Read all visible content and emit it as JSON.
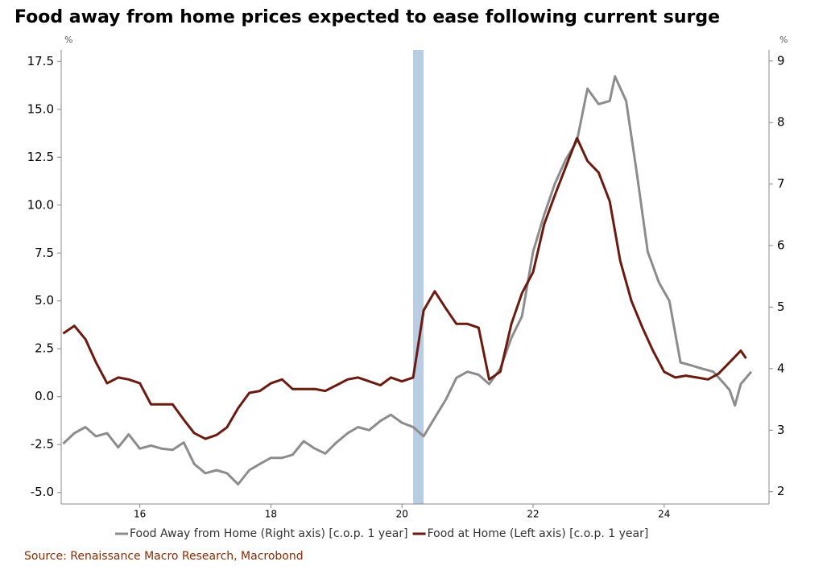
{
  "chart_data": {
    "type": "line",
    "title": "Food away from home prices expected to ease following current surge",
    "y_unit": "%",
    "y2_unit": "%",
    "source": "Source: Renaissance Macro Research, Macrobond",
    "xlim": [
      14.8,
      25.6
    ],
    "xticks": [
      16,
      18,
      20,
      22,
      24
    ],
    "ylim": [
      -5.6,
      18.1
    ],
    "yticks": [
      {
        "value": -5,
        "label": "-5.0"
      },
      {
        "value": -2.5,
        "label": "-2.5"
      },
      {
        "value": 0,
        "label": "0.0"
      },
      {
        "value": 2.5,
        "label": "2.5"
      },
      {
        "value": 5,
        "label": "5.0"
      },
      {
        "value": 7.5,
        "label": "7.5"
      },
      {
        "value": 10,
        "label": "10.0"
      },
      {
        "value": 12.5,
        "label": "12.5"
      },
      {
        "value": 15,
        "label": "15.0"
      },
      {
        "value": 17.5,
        "label": "17.5"
      }
    ],
    "y2lim": [
      1.8,
      9.18
    ],
    "y2ticks": [
      2,
      3,
      4,
      5,
      6,
      7,
      8,
      9
    ],
    "shaded_x": [
      20.17,
      20.33
    ],
    "shaded_color": "#b8cce4",
    "legend": "bottom",
    "series": [
      {
        "name": "Food Away from Home (Right axis) [c.o.p. 1 year]",
        "color": "#8c8c8c",
        "axis": "y2",
        "x": [
          14.83,
          15.0,
          15.17,
          15.33,
          15.5,
          15.67,
          15.83,
          16.0,
          16.17,
          16.33,
          16.5,
          16.67,
          16.83,
          17.0,
          17.17,
          17.33,
          17.5,
          17.67,
          17.83,
          18.0,
          18.17,
          18.33,
          18.5,
          18.67,
          18.83,
          19.0,
          19.17,
          19.33,
          19.5,
          19.67,
          19.83,
          20.0,
          20.17,
          20.33,
          20.5,
          20.67,
          20.83,
          21.0,
          21.17,
          21.33,
          21.5,
          21.67,
          21.83,
          22.0,
          22.17,
          22.33,
          22.5,
          22.67,
          22.83,
          23.0,
          23.17,
          23.25,
          23.42,
          23.58,
          23.75,
          23.92,
          24.08,
          24.25,
          24.42,
          24.58,
          24.75,
          24.92,
          25.0,
          25.08,
          25.17,
          25.33
        ],
        "values": [
          2.78,
          2.95,
          3.05,
          2.9,
          2.95,
          2.72,
          2.93,
          2.7,
          2.75,
          2.7,
          2.68,
          2.8,
          2.45,
          2.3,
          2.35,
          2.3,
          2.12,
          2.35,
          2.45,
          2.55,
          2.55,
          2.6,
          2.82,
          2.7,
          2.62,
          2.8,
          2.95,
          3.05,
          3.0,
          3.15,
          3.25,
          3.12,
          3.05,
          2.9,
          3.2,
          3.5,
          3.85,
          3.95,
          3.9,
          3.75,
          4.0,
          4.5,
          4.85,
          5.9,
          6.5,
          7.0,
          7.4,
          7.7,
          8.55,
          8.3,
          8.35,
          8.75,
          8.35,
          7.2,
          5.9,
          5.4,
          5.1,
          4.1,
          4.05,
          4.0,
          3.95,
          3.75,
          3.65,
          3.4,
          3.75,
          3.95
        ]
      },
      {
        "name": "Food at Home (Left axis) [c.o.p. 1 year]",
        "color": "#6b1a0f",
        "axis": "y",
        "x": [
          14.83,
          15.0,
          15.17,
          15.33,
          15.5,
          15.67,
          15.83,
          16.0,
          16.17,
          16.33,
          16.5,
          16.67,
          16.83,
          17.0,
          17.17,
          17.33,
          17.5,
          17.67,
          17.83,
          18.0,
          18.17,
          18.33,
          18.5,
          18.67,
          18.83,
          19.0,
          19.17,
          19.33,
          19.5,
          19.67,
          19.83,
          20.0,
          20.17,
          20.33,
          20.5,
          20.67,
          20.83,
          21.0,
          21.17,
          21.33,
          21.5,
          21.67,
          21.83,
          22.0,
          22.17,
          22.33,
          22.5,
          22.67,
          22.83,
          23.0,
          23.17,
          23.33,
          23.5,
          23.67,
          23.83,
          24.0,
          24.17,
          24.33,
          24.5,
          24.67,
          24.83,
          25.0,
          25.17,
          25.25
        ],
        "values": [
          3.3,
          3.7,
          3.0,
          1.8,
          0.7,
          1.0,
          0.9,
          0.7,
          -0.4,
          -0.4,
          -0.4,
          -1.2,
          -1.9,
          -2.2,
          -2.0,
          -1.6,
          -0.6,
          0.2,
          0.3,
          0.7,
          0.9,
          0.4,
          0.4,
          0.4,
          0.3,
          0.6,
          0.9,
          1.0,
          0.8,
          0.6,
          1.0,
          0.8,
          1.0,
          4.5,
          5.5,
          4.6,
          3.8,
          3.8,
          3.6,
          0.9,
          1.3,
          3.8,
          5.4,
          6.5,
          9.0,
          10.5,
          12.0,
          13.5,
          12.3,
          11.7,
          10.2,
          7.1,
          5.0,
          3.6,
          2.4,
          1.3,
          1.0,
          1.1,
          1.0,
          0.9,
          1.2,
          1.8,
          2.4,
          2.0
        ]
      }
    ]
  }
}
